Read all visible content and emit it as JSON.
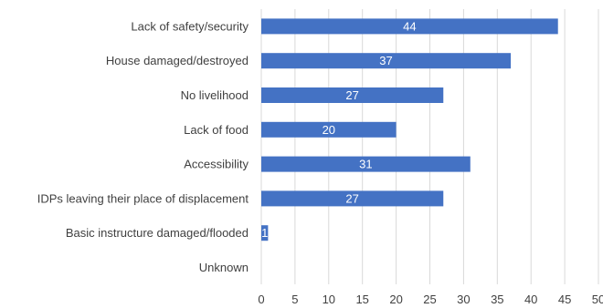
{
  "chart_data": {
    "type": "bar",
    "orientation": "horizontal",
    "title": "",
    "xlabel": "",
    "ylabel": "",
    "categories": [
      "Lack of safety/security",
      "House damaged/destroyed",
      "No livelihood",
      "Lack of food",
      "Accessibility",
      "IDPs leaving their place of displacement",
      "Basic instructure damaged/flooded",
      "Unknown"
    ],
    "values": [
      44,
      37,
      27,
      20,
      31,
      27,
      1,
      0
    ],
    "data_labels": [
      "44",
      "37",
      "27",
      "20",
      "31",
      "27",
      "1",
      ""
    ],
    "xlim": [
      0,
      50
    ],
    "x_ticks": [
      0,
      5,
      10,
      15,
      20,
      25,
      30,
      35,
      40,
      45,
      50
    ],
    "x_tick_labels": [
      "0",
      "5",
      "10",
      "15",
      "20",
      "25",
      "30",
      "35",
      "40",
      "45",
      "50"
    ],
    "grid": "vertical",
    "legend": "none",
    "colors": {
      "bar": "#4472c4",
      "grid": "#d9d9d9",
      "text": "#404040",
      "data_label": "#ffffff"
    }
  }
}
